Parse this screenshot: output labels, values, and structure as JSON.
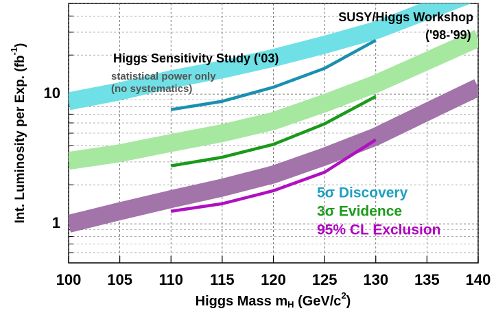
{
  "chart_data": {
    "type": "line",
    "x_label": [
      "Higgs Mass m",
      "H",
      " (GeV/c",
      "2",
      ")"
    ],
    "y_label": [
      "Int. Luminosity per Exp. (fb",
      "-1",
      ")"
    ],
    "x": [
      100,
      105,
      110,
      115,
      120,
      125,
      130,
      135,
      140
    ],
    "series": [
      {
        "name": "5σ Discovery",
        "color": "#6fe0e6",
        "label_color": "#1e9fc0",
        "values": [
          8.8,
          10.5,
          13,
          15.5,
          19,
          24,
          31,
          44,
          62
        ]
      },
      {
        "name": "3σ Evidence",
        "color": "#a6e8a0",
        "label_color": "#1a9a1a",
        "values": [
          3.06,
          3.5,
          4.2,
          5.0,
          6.2,
          8.5,
          12,
          18,
          27
        ]
      },
      {
        "name": "95% CL Exclusion",
        "color": "#a274aa",
        "label_color": "#b000c0",
        "values": [
          1.0,
          1.25,
          1.55,
          1.9,
          2.4,
          3.3,
          4.7,
          7.3,
          11.3
        ]
      }
    ],
    "study_x": [
      110,
      115,
      120,
      125,
      130
    ],
    "study_series": [
      {
        "color": "#1a90b0",
        "values": [
          7.6,
          8.8,
          11.3,
          15.8,
          26
        ]
      },
      {
        "color": "#1a9a1a",
        "values": [
          2.8,
          3.26,
          4.1,
          5.9,
          9.6
        ]
      },
      {
        "color": "#b010c0",
        "values": [
          1.25,
          1.43,
          1.8,
          2.5,
          4.45
        ]
      }
    ],
    "annotations": [
      "SUSY/Higgs Workshop",
      "('98-'99)",
      "Higgs Sensitivity Study ('03)",
      "statistical power only",
      "(no systematics)"
    ],
    "xlim": [
      100,
      140
    ],
    "xticks": [
      100,
      105,
      110,
      115,
      120,
      125,
      130,
      135,
      140
    ],
    "ylim": [
      0.5,
      50
    ],
    "yticks": [
      1,
      10
    ],
    "y_minor_grid": [
      0.6,
      0.7,
      0.8,
      0.9,
      2,
      3,
      4,
      5,
      6,
      7,
      8,
      9,
      20,
      30,
      40,
      50
    ],
    "log_y": true,
    "grid": true
  }
}
